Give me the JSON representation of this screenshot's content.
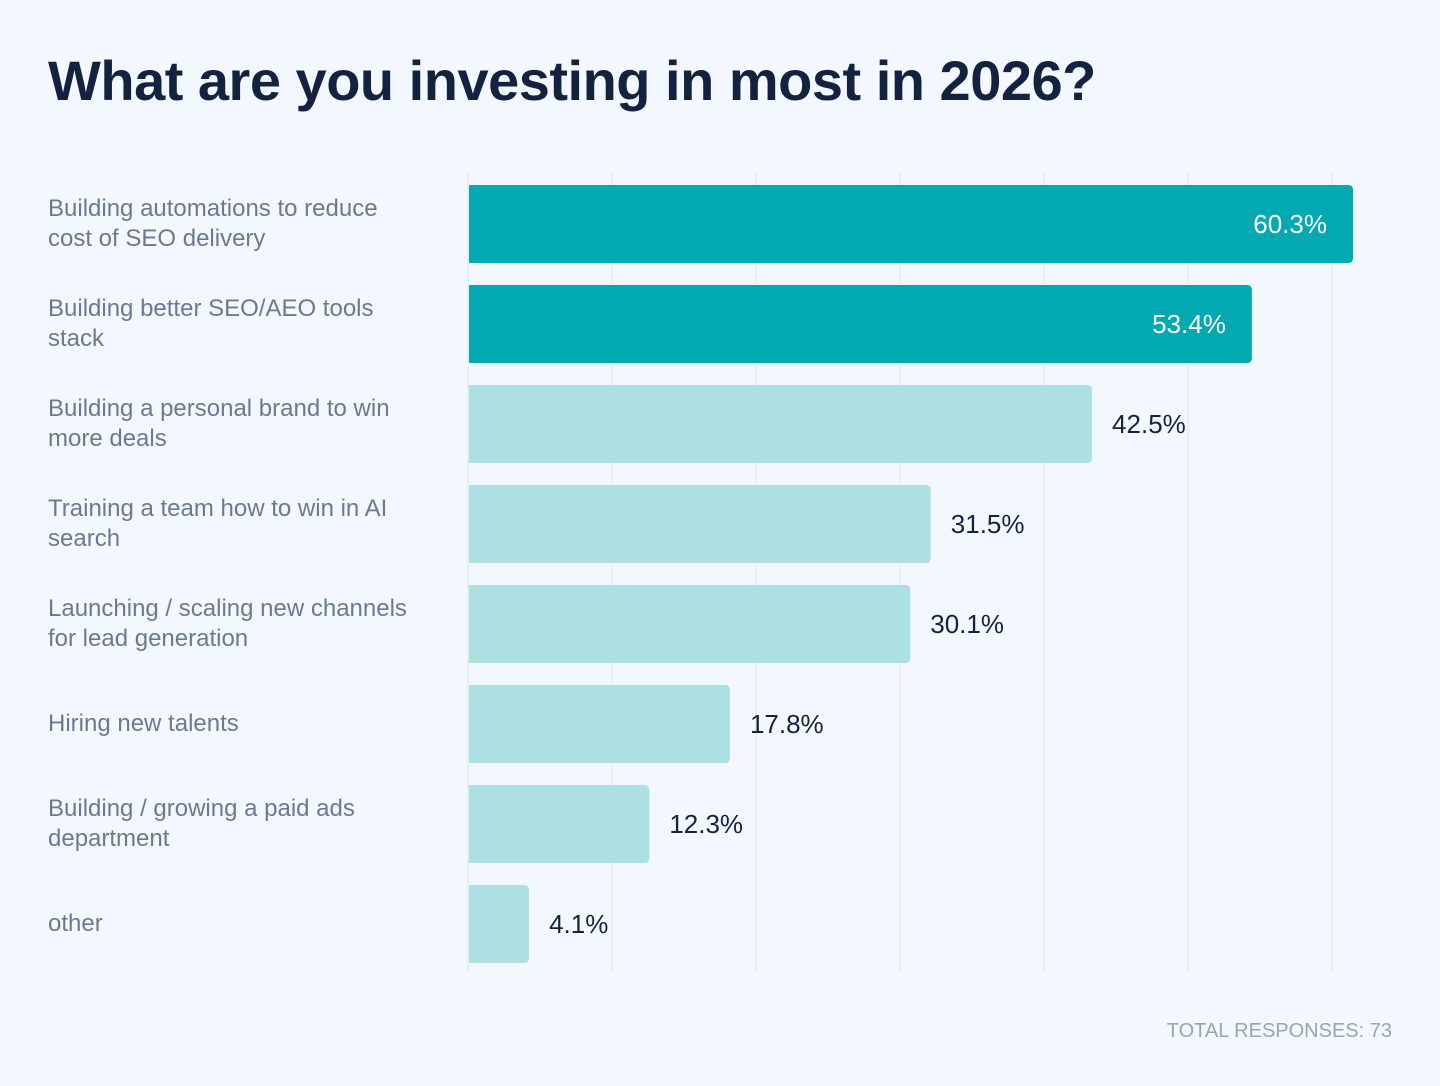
{
  "chart_data": {
    "type": "bar",
    "orientation": "horizontal",
    "title": "What are you investing in most in 2026?",
    "categories": [
      "Building automations to reduce cost of SEO delivery",
      "Building better SEO/AEO tools stack",
      "Building a personal brand to win more deals",
      "Training a team how to win in AI search",
      "Launching / scaling new channels for lead generation",
      "Hiring new talents",
      "Building / growing a paid ads department",
      "other"
    ],
    "values": [
      60.3,
      53.4,
      42.5,
      31.5,
      30.1,
      17.8,
      12.3,
      4.1
    ],
    "data_labels": [
      "60.3%",
      "53.4%",
      "42.5%",
      "31.5%",
      "30.1%",
      "17.8%",
      "12.3%",
      "4.1%"
    ],
    "unit": "%",
    "xlim": [
      0,
      60
    ],
    "grid": true,
    "highlighted_count": 2,
    "colors": {
      "highlight": "#02a9b0",
      "default": "#ade0e3",
      "grid": "#e8eef6",
      "label_dark": "#13233f",
      "label_light": "#ffffff"
    }
  },
  "footer": {
    "total_responses": "TOTAL RESPONSES: 73"
  }
}
